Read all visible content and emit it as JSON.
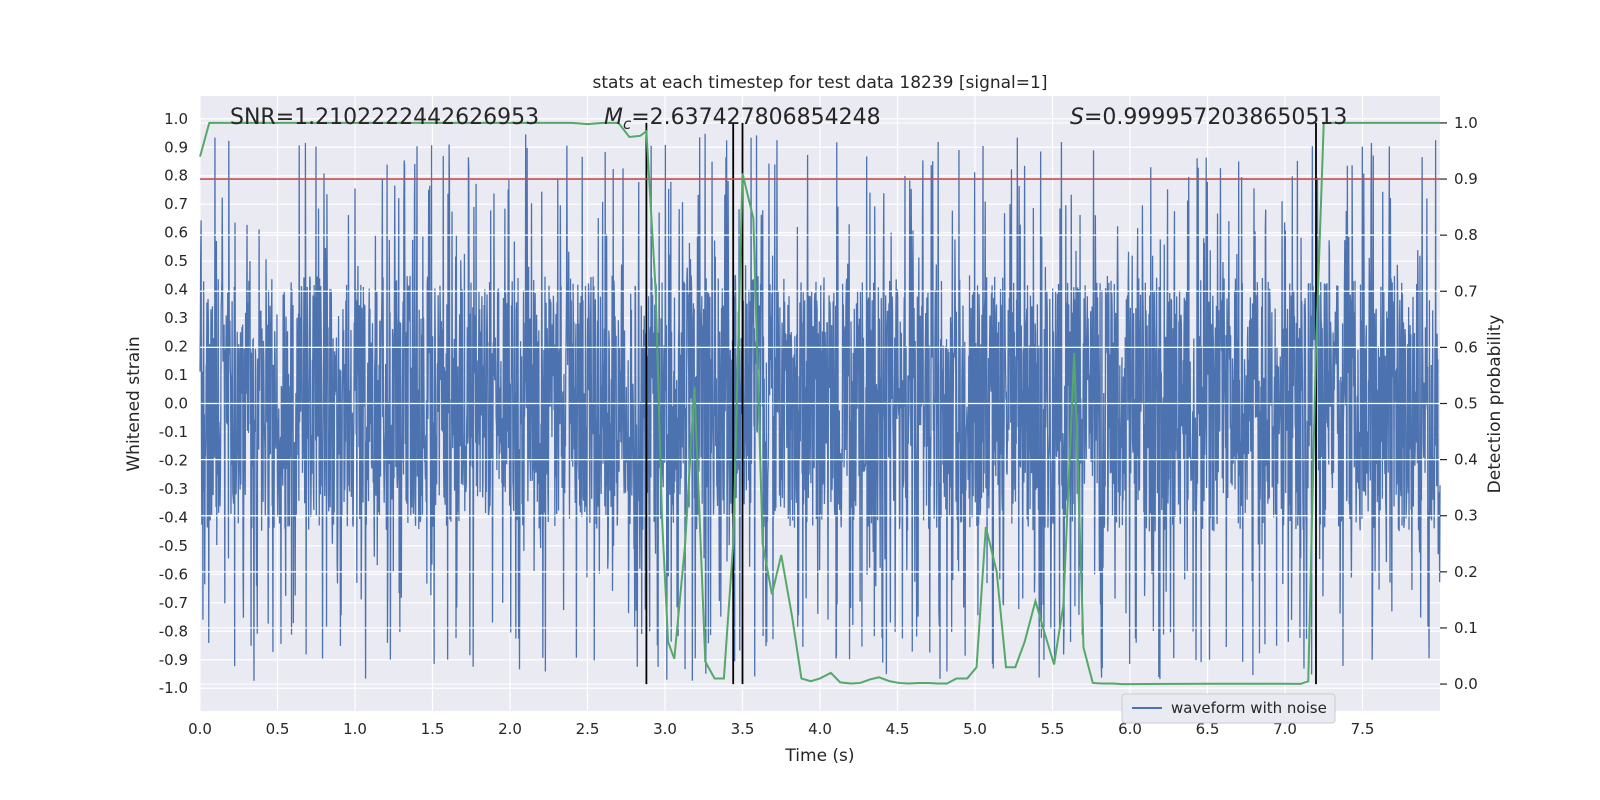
{
  "chart_data": {
    "type": "line",
    "title": "stats at each timestep for test data 18239 [signal=1]",
    "xlabel": "Time (s)",
    "ylabel": "Whitened strain",
    "y2label": "Detection probability",
    "xlim": [
      0.0,
      8.0
    ],
    "ylim": [
      -1.08,
      1.08
    ],
    "y2lim": [
      -0.048,
      1.048
    ],
    "xticks": [
      0.0,
      0.5,
      1.0,
      1.5,
      2.0,
      2.5,
      3.0,
      3.5,
      4.0,
      4.5,
      5.0,
      5.5,
      6.0,
      6.5,
      7.0,
      7.5
    ],
    "xtick_labels": [
      "0.0",
      "0.5",
      "1.0",
      "1.5",
      "2.0",
      "2.5",
      "3.0",
      "3.5",
      "4.0",
      "4.5",
      "5.0",
      "5.5",
      "6.0",
      "6.5",
      "7.0",
      "7.5"
    ],
    "yticks": [
      1.0,
      0.9,
      0.8,
      0.7,
      0.6,
      0.5,
      0.4,
      0.3,
      0.2,
      0.1,
      0.0,
      -0.1,
      -0.2,
      -0.3,
      -0.4,
      -0.5,
      -0.6,
      -0.7,
      -0.8,
      -0.9,
      -1.0
    ],
    "ytick_labels": [
      "1.0",
      "0.9",
      "0.8",
      "0.7",
      "0.6",
      "0.5",
      "0.4",
      "0.3",
      "0.2",
      "0.1",
      "0.0",
      "-0.1",
      "-0.2",
      "-0.3",
      "-0.4",
      "-0.5",
      "-0.6",
      "-0.7",
      "-0.8",
      "-0.9",
      "-1.0"
    ],
    "y2ticks": [
      1.0,
      0.9,
      0.8,
      0.7,
      0.6,
      0.5,
      0.4,
      0.3,
      0.2,
      0.1,
      0.0
    ],
    "y2tick_labels": [
      "1.0",
      "0.9",
      "0.8",
      "0.7",
      "0.6",
      "0.5",
      "0.4",
      "0.3",
      "0.2",
      "0.1",
      "0.0"
    ],
    "grid": true,
    "legend": {
      "position": "bottom-right",
      "entries": [
        {
          "label": "waveform with noise",
          "color": "#4c72b0"
        }
      ]
    },
    "annotations": {
      "snr": "SNR=1.2102222442626953",
      "mc_symbol": "M",
      "mc_subscript": "c",
      "mc_value": "=2.637427806854248",
      "s_symbol": "S",
      "s_value": "=0.9999572038650513"
    },
    "threshold": {
      "value": 0.9,
      "axis": "y2",
      "color": "#c44e52"
    },
    "vertical_markers": [
      2.88,
      3.44,
      3.5,
      7.2
    ],
    "series": [
      {
        "name": "waveform with noise",
        "axis": "y",
        "color": "#4c72b0",
        "kind": "noise",
        "t_start": 0.0,
        "t_end": 8.0,
        "typical_envelope": [
          -0.45,
          0.45
        ],
        "peak_range": [
          -0.98,
          0.95
        ]
      },
      {
        "name": "detection probability",
        "axis": "y2",
        "color": "#55a868",
        "x": [
          0.0,
          0.06,
          0.5,
          1.0,
          1.5,
          2.0,
          2.4,
          2.5,
          2.6,
          2.7,
          2.77,
          2.84,
          2.88,
          2.94,
          2.98,
          3.02,
          3.06,
          3.13,
          3.19,
          3.26,
          3.32,
          3.38,
          3.44,
          3.5,
          3.57,
          3.63,
          3.69,
          3.75,
          3.82,
          3.88,
          3.94,
          4.0,
          4.07,
          4.13,
          4.2,
          4.26,
          4.32,
          4.38,
          4.45,
          4.51,
          4.57,
          4.64,
          4.7,
          4.76,
          4.82,
          4.88,
          4.95,
          5.01,
          5.07,
          5.14,
          5.2,
          5.26,
          5.32,
          5.39,
          5.45,
          5.51,
          5.57,
          5.64,
          5.7,
          5.76,
          5.82,
          5.89,
          5.95,
          6.01,
          6.5,
          7.0,
          7.1,
          7.15,
          7.2,
          7.25,
          8.0
        ],
        "y": [
          0.94,
          1.0,
          1.0,
          1.0,
          1.0,
          1.0,
          1.0,
          0.998,
          1.0,
          1.0,
          0.975,
          0.977,
          0.985,
          0.7,
          0.3,
          0.075,
          0.045,
          0.25,
          0.53,
          0.04,
          0.01,
          0.01,
          0.25,
          0.91,
          0.83,
          0.25,
          0.16,
          0.23,
          0.12,
          0.01,
          0.005,
          0.01,
          0.02,
          0.003,
          0.001,
          0.002,
          0.008,
          0.012,
          0.005,
          0.002,
          0.001,
          0.002,
          0.002,
          0.001,
          0.001,
          0.01,
          0.01,
          0.03,
          0.28,
          0.2,
          0.03,
          0.03,
          0.075,
          0.148,
          0.09,
          0.035,
          0.14,
          0.59,
          0.065,
          0.002,
          0.001,
          0.001,
          0.0,
          0.0,
          0.0005,
          0.0005,
          0.0003,
          0.005,
          0.6,
          1.0,
          1.0
        ]
      }
    ]
  }
}
